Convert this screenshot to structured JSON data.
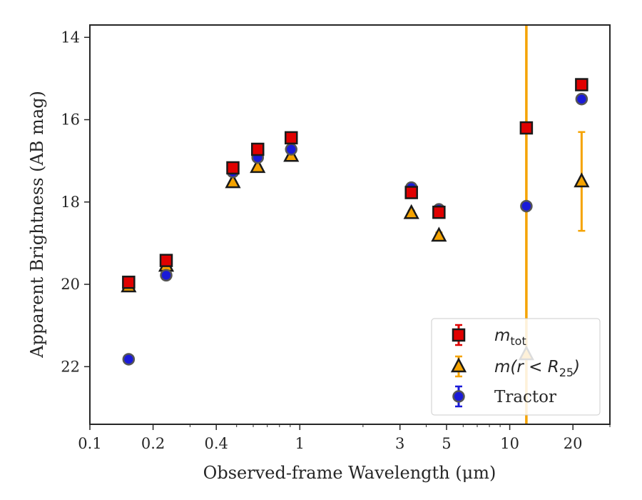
{
  "chart_data": {
    "type": "scatter",
    "xlabel": "Observed-frame Wavelength (μm)",
    "ylabel": "Apparent Brightness (AB mag)",
    "xscale": "log",
    "xlim": [
      0.1,
      30
    ],
    "ylim": [
      23.4,
      13.7
    ],
    "y_inverted": true,
    "x_ticks": [
      0.1,
      0.2,
      0.4,
      1,
      3,
      5,
      10,
      20
    ],
    "x_tick_labels": [
      "0.1",
      "0.2",
      "0.4",
      "1",
      "3",
      "5",
      "10",
      "20"
    ],
    "y_ticks": [
      14,
      16,
      18,
      20,
      22
    ],
    "y_tick_labels": [
      "14",
      "16",
      "18",
      "20",
      "22"
    ],
    "grid": false,
    "legend_position": "bottom-right",
    "series": [
      {
        "name": "m_tot",
        "marker": "square",
        "color": "#e00000",
        "error_color": "#e00000",
        "x": [
          0.153,
          0.231,
          0.48,
          0.63,
          0.91,
          3.4,
          4.6,
          12.0,
          22.0
        ],
        "y": [
          19.95,
          19.42,
          17.17,
          16.72,
          16.44,
          17.77,
          18.25,
          16.2,
          15.15
        ],
        "yerr": [
          0.05,
          0.05,
          0.04,
          0.04,
          0.04,
          0.06,
          0.08,
          0.06,
          0.06
        ]
      },
      {
        "name": "m(r < R25)",
        "marker": "triangle",
        "color": "#f5a300",
        "error_color": "#f5a300",
        "x": [
          0.153,
          0.231,
          0.48,
          0.63,
          0.91,
          3.4,
          4.6,
          12.0,
          22.0
        ],
        "y": [
          20.05,
          19.55,
          17.52,
          17.15,
          16.88,
          18.27,
          18.82,
          21.7,
          17.5
        ],
        "yerr": [
          0.05,
          0.05,
          0.04,
          0.04,
          0.04,
          0.06,
          0.08,
          30,
          1.2
        ]
      },
      {
        "name": "Tractor",
        "marker": "circle",
        "color": "#1a1ad8",
        "error_color": "#1a1ad8",
        "x": [
          0.153,
          0.231,
          0.48,
          0.63,
          0.91,
          3.4,
          4.6,
          12.0,
          22.0
        ],
        "y": [
          21.82,
          19.78,
          17.27,
          16.92,
          16.72,
          17.65,
          18.18,
          18.1,
          15.5
        ],
        "yerr": [
          0.08,
          0.06,
          0.05,
          0.05,
          0.05,
          0.06,
          0.08,
          0.08,
          0.08
        ]
      }
    ]
  }
}
